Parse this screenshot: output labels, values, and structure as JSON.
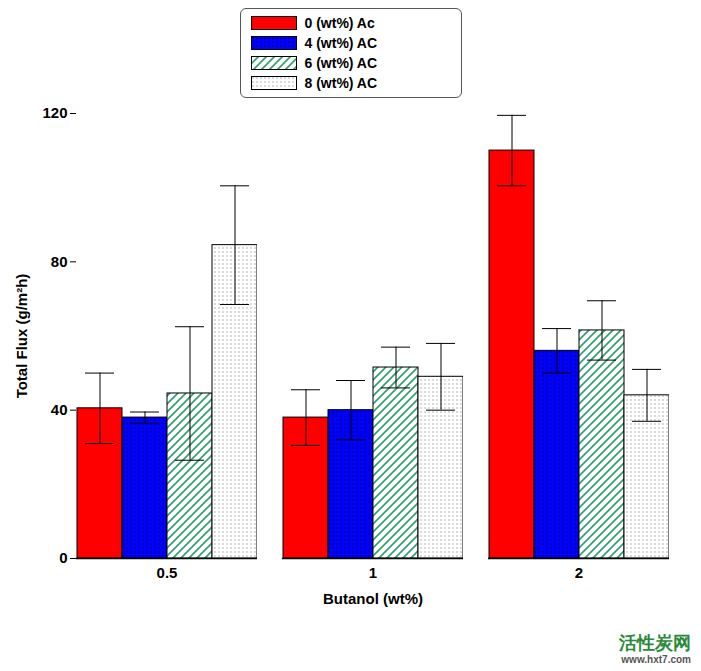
{
  "chart_data": {
    "type": "bar",
    "x_label": "Butanol (wt%)",
    "y_label": "Total Flux (g/m²h)",
    "categories": [
      "0.5",
      "1",
      "2"
    ],
    "series": [
      {
        "name": "0 (wt%) Ac",
        "color": "#ff0000",
        "values": [
          40.5,
          38,
          110
        ],
        "errors": [
          9.5,
          7.5,
          9.5
        ]
      },
      {
        "name": "4 (wt%) AC",
        "color": "#0000ff",
        "values": [
          38,
          40,
          56
        ],
        "errors": [
          1.5,
          8,
          6
        ]
      },
      {
        "name": "6 (wt%) AC",
        "color": "#2e9e6e",
        "values": [
          44.5,
          51.5,
          61.5
        ],
        "errors": [
          18,
          5.5,
          8
        ]
      },
      {
        "name": "8 (wt%) AC",
        "color": "#999999",
        "values": [
          84.5,
          49,
          44
        ],
        "errors": [
          16,
          9,
          7
        ]
      }
    ],
    "ylim": [
      0,
      120
    ],
    "yticks": [
      0,
      40,
      80,
      120
    ],
    "legend": "top",
    "annotations": [
      "活性炭网",
      "www.hxt7.com"
    ]
  }
}
